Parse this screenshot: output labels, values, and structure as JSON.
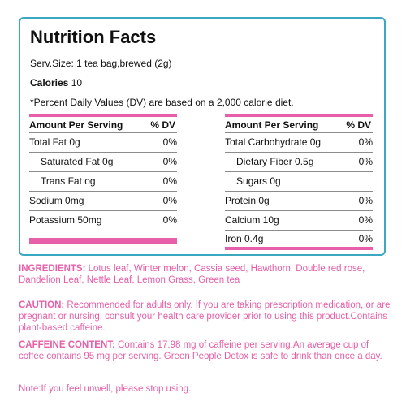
{
  "panel": {
    "title": "Nutrition Facts",
    "serving": "Serv.Size: 1 tea bag,brewed (2g)",
    "calories_label": "Calories",
    "calories_value": "10",
    "dv_note": "*Percent Daily Values (DV) are based on a 2,000 calorie diet."
  },
  "left_table": {
    "header_label": "Amount Per Serving",
    "header_dv": "% DV",
    "rows": [
      {
        "label": "Total Fat 0g",
        "dv": "0%"
      },
      {
        "label": "Saturated Fat 0g",
        "dv": "0%"
      },
      {
        "label": "Trans Fat og",
        "dv": "0%"
      },
      {
        "label": "Sodium 0mg",
        "dv": "0%"
      },
      {
        "label": "Potassium 50mg",
        "dv": "0%"
      }
    ]
  },
  "right_table": {
    "header_label": "Amount Per Serving",
    "header_dv": "% DV",
    "rows": [
      {
        "label": "Total Carbohydrate 0g",
        "dv": "0%"
      },
      {
        "label": "Dietary Fiber 0.5g",
        "dv": "0%"
      },
      {
        "label": "Sugars 0g",
        "dv": ""
      },
      {
        "label": "Protein 0g",
        "dv": "0%"
      },
      {
        "label": "Calcium 10g",
        "dv": "0%"
      },
      {
        "label": "Iron 0.4g",
        "dv": "0%"
      }
    ]
  },
  "ingredients": {
    "label": "INGREDIENTS:",
    "text": " Lotus leaf, Winter melon, Cassia seed, Hawthorn, Double red rose, Dandelion Leaf, Nettle Leaf, Lemon Grass, Green tea"
  },
  "caution": {
    "label": "CAUTION:",
    "text": " Recommended for adults only. If you are taking prescription medication, or are pregnant or nursing, consult your health care provider prior to using this product.Contains plant-based caffeine."
  },
  "caffeine": {
    "label": "CAFFEINE CONTENT:",
    "text": " Contains 17.98 mg of caffeine per serving.An average cup of coffee contains 95 mg per serving. Green People Detox is safe to drink than once a day."
  },
  "note": "Note:If you feel unwell, please stop using.",
  "colors": {
    "accent": "#e65fa8",
    "border": "#3aa8c1"
  }
}
